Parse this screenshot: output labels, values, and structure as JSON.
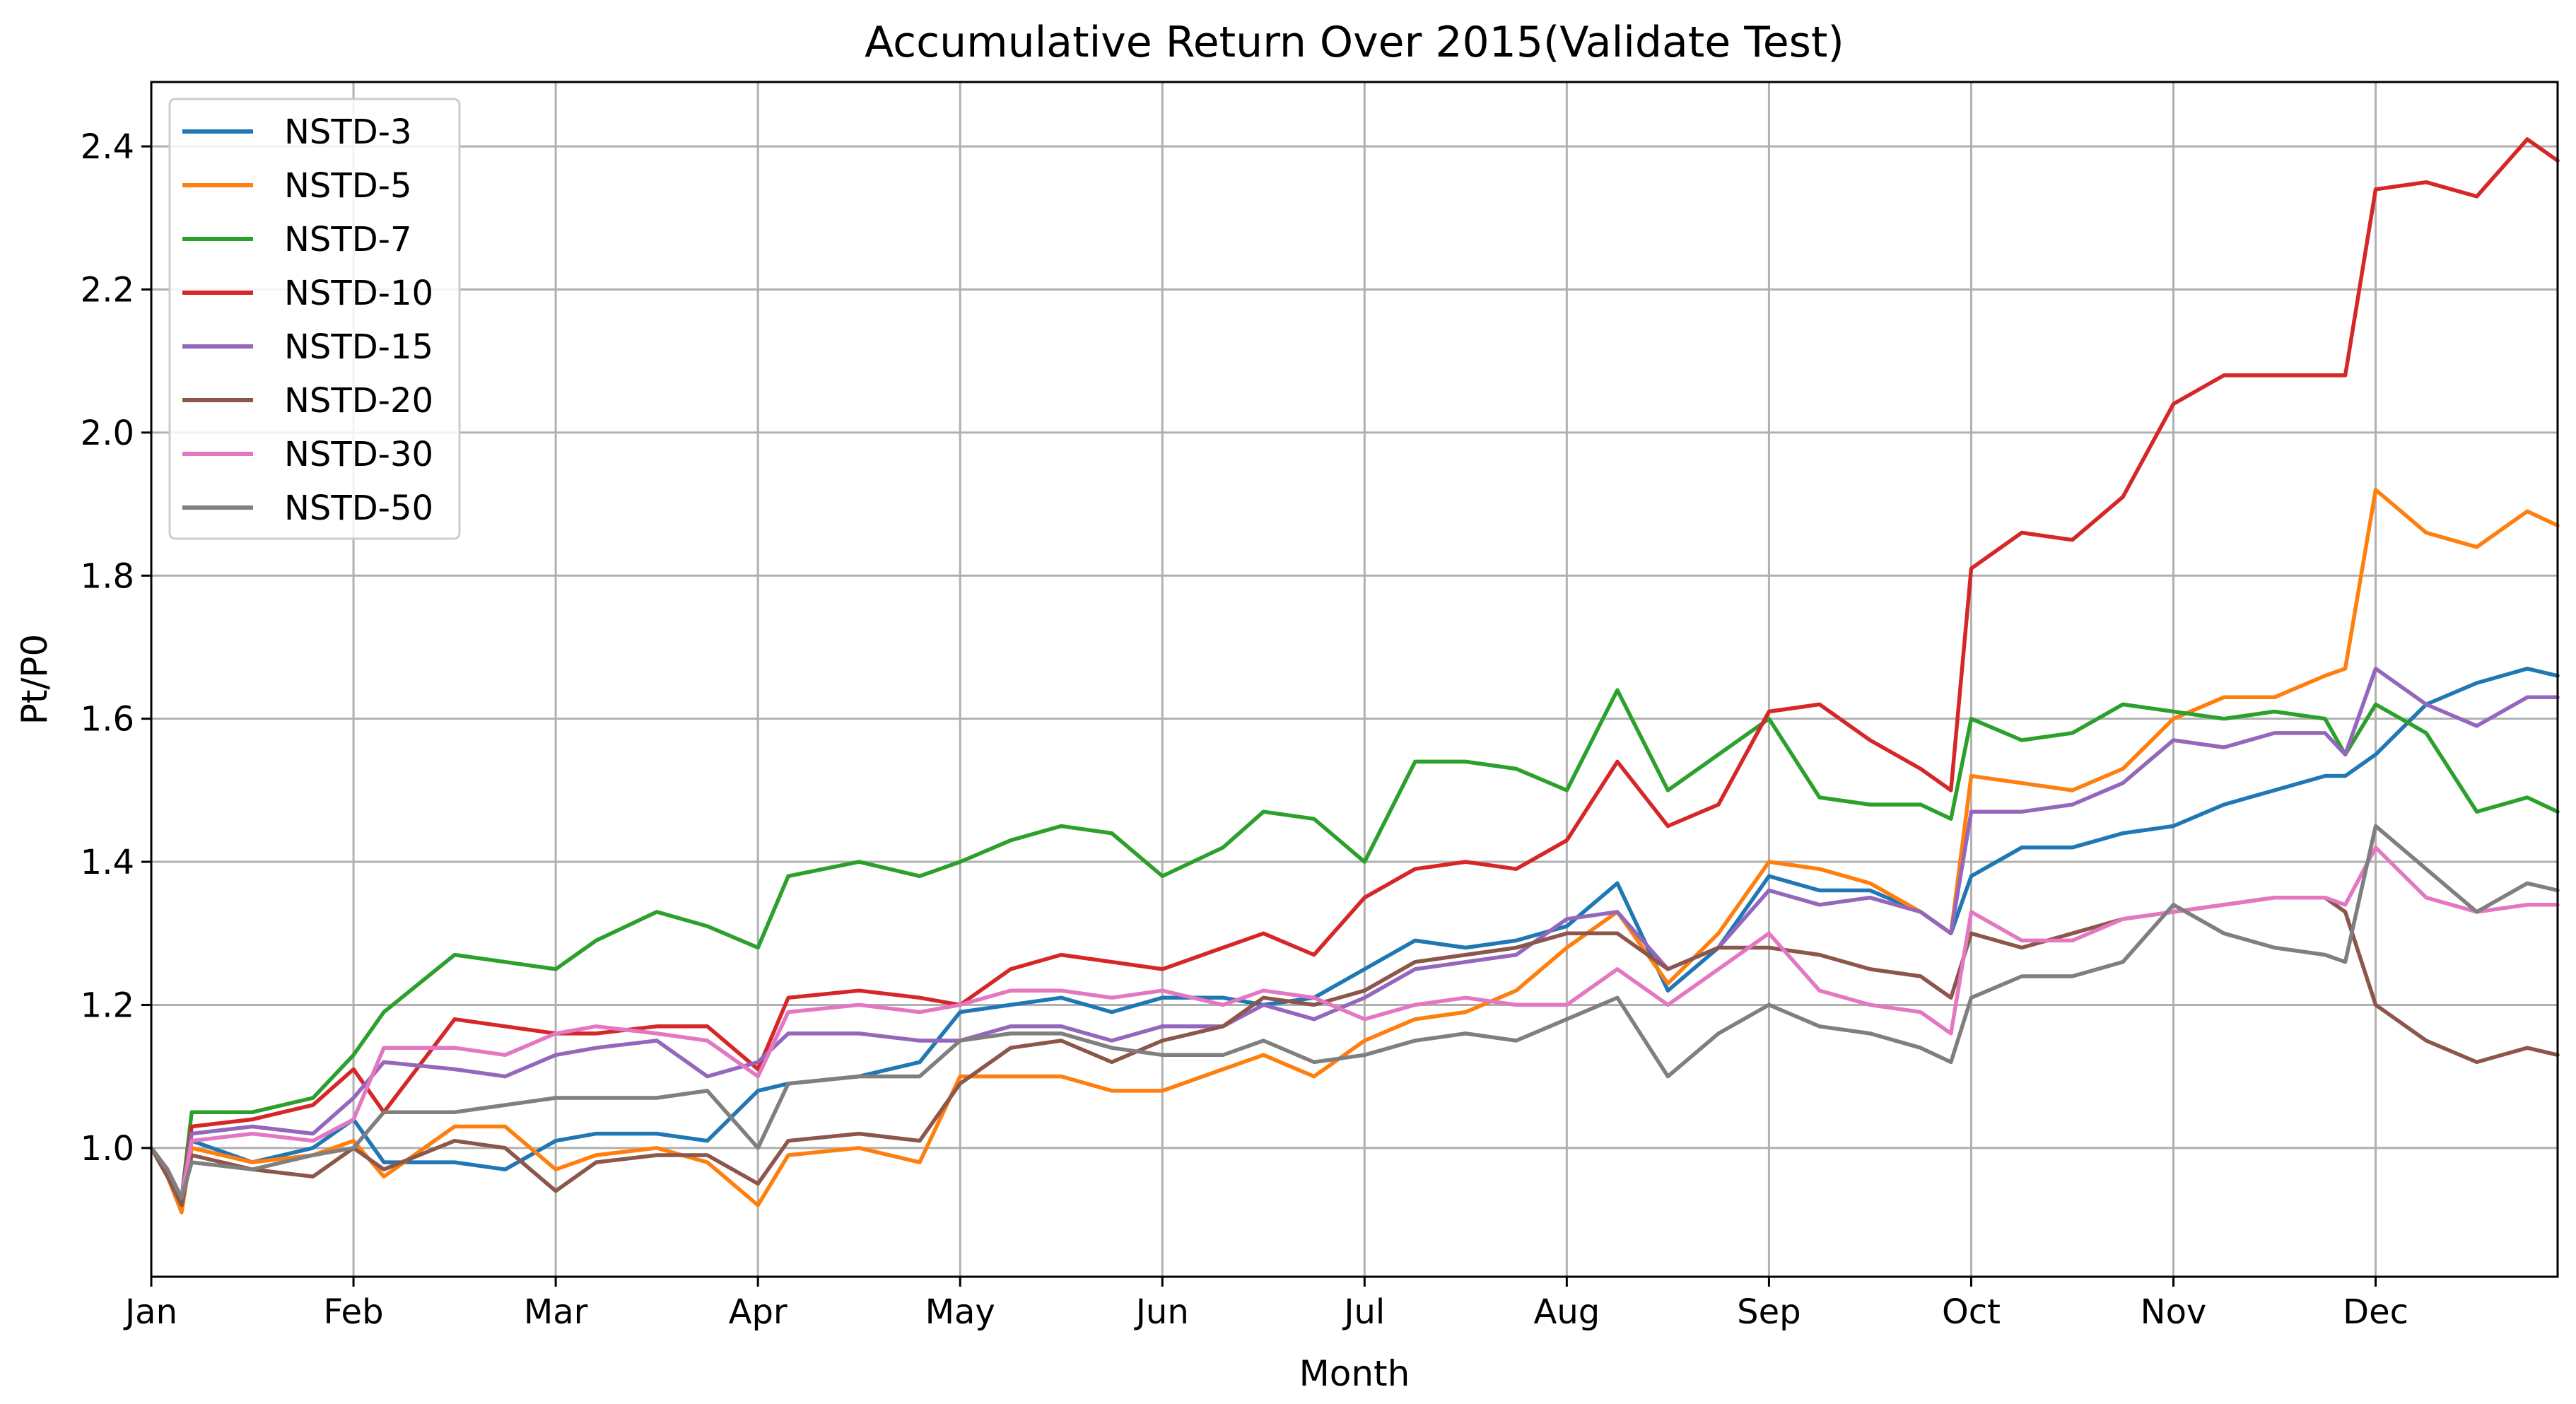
{
  "chart_data": {
    "type": "line",
    "title": "Accumulative Return Over 2015(Validate Test)",
    "xlabel": "Month",
    "ylabel": "Pt/P0",
    "xlim": [
      0,
      11.9
    ],
    "ylim": [
      0.82,
      2.49
    ],
    "x_tick_values": [
      0,
      1,
      2,
      3,
      4,
      5,
      6,
      7,
      8,
      9,
      10,
      11
    ],
    "x_tick_labels": [
      "Jan",
      "Feb",
      "Mar",
      "Apr",
      "May",
      "Jun",
      "Jul",
      "Aug",
      "Sep",
      "Oct",
      "Nov",
      "Dec"
    ],
    "y_tick_values": [
      1.0,
      1.2,
      1.4,
      1.6,
      1.8,
      2.0,
      2.2,
      2.4
    ],
    "y_tick_labels": [
      "1.0",
      "1.2",
      "1.4",
      "1.6",
      "1.8",
      "2.0",
      "2.2",
      "2.4"
    ],
    "grid": true,
    "legend_position": "upper-left",
    "x": [
      0,
      0.08,
      0.15,
      0.2,
      0.5,
      0.8,
      1.0,
      1.15,
      1.5,
      1.75,
      2.0,
      2.2,
      2.5,
      2.75,
      3.0,
      3.15,
      3.5,
      3.8,
      4.0,
      4.25,
      4.5,
      4.75,
      5.0,
      5.3,
      5.5,
      5.75,
      6.0,
      6.25,
      6.5,
      6.75,
      7.0,
      7.25,
      7.5,
      7.75,
      8.0,
      8.25,
      8.5,
      8.75,
      8.9,
      9.0,
      9.25,
      9.5,
      9.75,
      10.0,
      10.25,
      10.5,
      10.75,
      10.85,
      11.0,
      11.25,
      11.5,
      11.75,
      11.9
    ],
    "series": [
      {
        "name": "NSTD-3",
        "color": "#1f77b4",
        "values": [
          1.0,
          0.97,
          0.92,
          1.01,
          0.98,
          1.0,
          1.04,
          0.98,
          0.98,
          0.97,
          1.01,
          1.02,
          1.02,
          1.01,
          1.08,
          1.09,
          1.1,
          1.12,
          1.19,
          1.2,
          1.21,
          1.19,
          1.21,
          1.21,
          1.2,
          1.21,
          1.25,
          1.29,
          1.28,
          1.29,
          1.31,
          1.37,
          1.22,
          1.28,
          1.38,
          1.36,
          1.36,
          1.33,
          1.3,
          1.38,
          1.42,
          1.42,
          1.44,
          1.45,
          1.48,
          1.5,
          1.52,
          1.52,
          1.55,
          1.62,
          1.65,
          1.67,
          1.66
        ]
      },
      {
        "name": "NSTD-5",
        "color": "#ff7f0e",
        "values": [
          1.0,
          0.96,
          0.91,
          1.0,
          0.98,
          0.99,
          1.01,
          0.96,
          1.03,
          1.03,
          0.97,
          0.99,
          1.0,
          0.98,
          0.92,
          0.99,
          1.0,
          0.98,
          1.1,
          1.1,
          1.1,
          1.08,
          1.08,
          1.11,
          1.13,
          1.1,
          1.15,
          1.18,
          1.19,
          1.22,
          1.28,
          1.33,
          1.23,
          1.3,
          1.4,
          1.39,
          1.37,
          1.33,
          1.3,
          1.52,
          1.51,
          1.5,
          1.53,
          1.6,
          1.63,
          1.63,
          1.66,
          1.67,
          1.92,
          1.86,
          1.84,
          1.89,
          1.87
        ]
      },
      {
        "name": "NSTD-7",
        "color": "#2ca02c",
        "values": [
          1.0,
          0.97,
          0.93,
          1.05,
          1.05,
          1.07,
          1.13,
          1.19,
          1.27,
          1.26,
          1.25,
          1.29,
          1.33,
          1.31,
          1.28,
          1.38,
          1.4,
          1.38,
          1.4,
          1.43,
          1.45,
          1.44,
          1.38,
          1.42,
          1.47,
          1.46,
          1.4,
          1.54,
          1.54,
          1.53,
          1.5,
          1.64,
          1.5,
          1.55,
          1.6,
          1.49,
          1.48,
          1.48,
          1.46,
          1.6,
          1.57,
          1.58,
          1.62,
          1.61,
          1.6,
          1.61,
          1.6,
          1.55,
          1.62,
          1.58,
          1.47,
          1.49,
          1.47
        ]
      },
      {
        "name": "NSTD-10",
        "color": "#d62728",
        "values": [
          1.0,
          0.97,
          0.93,
          1.03,
          1.04,
          1.06,
          1.11,
          1.05,
          1.18,
          1.17,
          1.16,
          1.16,
          1.17,
          1.17,
          1.11,
          1.21,
          1.22,
          1.21,
          1.2,
          1.25,
          1.27,
          1.26,
          1.25,
          1.28,
          1.3,
          1.27,
          1.35,
          1.39,
          1.4,
          1.39,
          1.43,
          1.54,
          1.45,
          1.48,
          1.61,
          1.62,
          1.57,
          1.53,
          1.5,
          1.81,
          1.86,
          1.85,
          1.91,
          2.04,
          2.08,
          2.08,
          2.08,
          2.08,
          2.34,
          2.35,
          2.33,
          2.41,
          2.38
        ]
      },
      {
        "name": "NSTD-15",
        "color": "#9467bd",
        "values": [
          1.0,
          0.97,
          0.93,
          1.02,
          1.03,
          1.02,
          1.07,
          1.12,
          1.11,
          1.1,
          1.13,
          1.14,
          1.15,
          1.1,
          1.12,
          1.16,
          1.16,
          1.15,
          1.15,
          1.17,
          1.17,
          1.15,
          1.17,
          1.17,
          1.2,
          1.18,
          1.21,
          1.25,
          1.26,
          1.27,
          1.32,
          1.33,
          1.25,
          1.28,
          1.36,
          1.34,
          1.35,
          1.33,
          1.3,
          1.47,
          1.47,
          1.48,
          1.51,
          1.57,
          1.56,
          1.58,
          1.58,
          1.55,
          1.67,
          1.62,
          1.59,
          1.63,
          1.63
        ]
      },
      {
        "name": "NSTD-20",
        "color": "#8c564b",
        "values": [
          1.0,
          0.96,
          0.92,
          0.99,
          0.97,
          0.96,
          1.0,
          0.97,
          1.01,
          1.0,
          0.94,
          0.98,
          0.99,
          0.99,
          0.95,
          1.01,
          1.02,
          1.01,
          1.09,
          1.14,
          1.15,
          1.12,
          1.15,
          1.17,
          1.21,
          1.2,
          1.22,
          1.26,
          1.27,
          1.28,
          1.3,
          1.3,
          1.25,
          1.28,
          1.28,
          1.27,
          1.25,
          1.24,
          1.21,
          1.3,
          1.28,
          1.3,
          1.32,
          1.33,
          1.34,
          1.35,
          1.35,
          1.33,
          1.2,
          1.15,
          1.12,
          1.14,
          1.13
        ]
      },
      {
        "name": "NSTD-30",
        "color": "#e377c2",
        "values": [
          1.0,
          0.97,
          0.93,
          1.01,
          1.02,
          1.01,
          1.04,
          1.14,
          1.14,
          1.13,
          1.16,
          1.17,
          1.16,
          1.15,
          1.1,
          1.19,
          1.2,
          1.19,
          1.2,
          1.22,
          1.22,
          1.21,
          1.22,
          1.2,
          1.22,
          1.21,
          1.18,
          1.2,
          1.21,
          1.2,
          1.2,
          1.25,
          1.2,
          1.25,
          1.3,
          1.22,
          1.2,
          1.19,
          1.16,
          1.33,
          1.29,
          1.29,
          1.32,
          1.33,
          1.34,
          1.35,
          1.35,
          1.34,
          1.42,
          1.35,
          1.33,
          1.34,
          1.34
        ]
      },
      {
        "name": "NSTD-50",
        "color": "#7f7f7f",
        "values": [
          1.0,
          0.97,
          0.93,
          0.98,
          0.97,
          0.99,
          1.0,
          1.05,
          1.05,
          1.06,
          1.07,
          1.07,
          1.07,
          1.08,
          1.0,
          1.09,
          1.1,
          1.1,
          1.15,
          1.16,
          1.16,
          1.14,
          1.13,
          1.13,
          1.15,
          1.12,
          1.13,
          1.15,
          1.16,
          1.15,
          1.18,
          1.21,
          1.1,
          1.16,
          1.2,
          1.17,
          1.16,
          1.14,
          1.12,
          1.21,
          1.24,
          1.24,
          1.26,
          1.34,
          1.3,
          1.28,
          1.27,
          1.26,
          1.45,
          1.39,
          1.33,
          1.37,
          1.36
        ]
      }
    ]
  }
}
